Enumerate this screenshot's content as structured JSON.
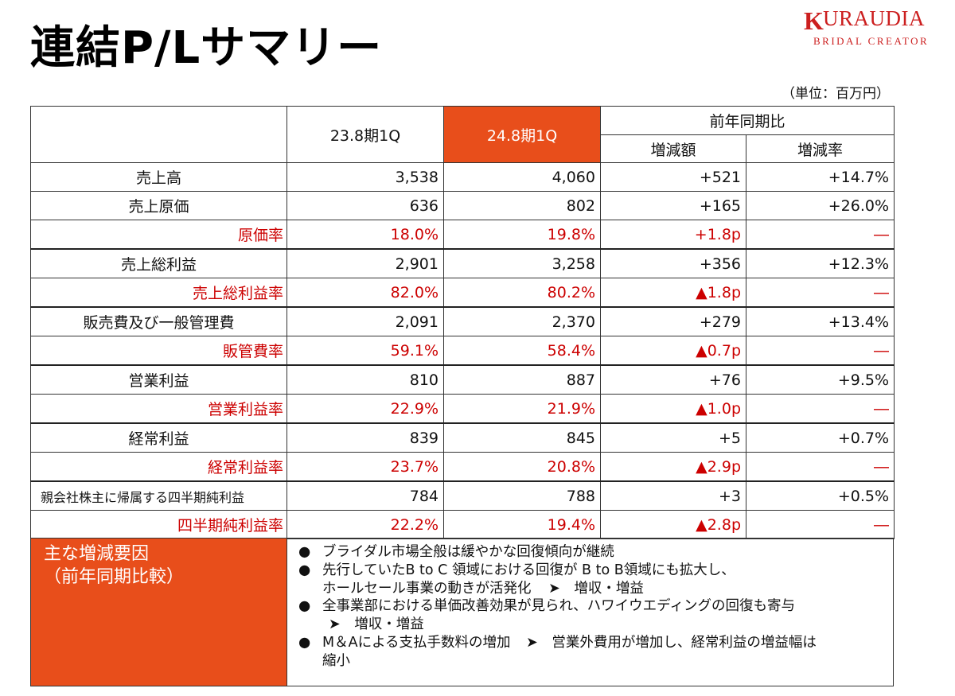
{
  "page": {
    "title": "連結P/Lサマリー",
    "unit_note": "（単位：百万円）"
  },
  "logo": {
    "k_letter": "K",
    "word": "URAUDIA",
    "subtitle": "BRIDAL CREATOR"
  },
  "table": {
    "headers": {
      "prev": "23.8期1Q",
      "curr": "24.8期1Q",
      "yoy": "前年同期比",
      "diff": "増減額",
      "rate": "増減率"
    },
    "rows": [
      {
        "label": "売上高",
        "prev": "3,538",
        "curr": "4,060",
        "diff": "+521",
        "rate": "+14.7%"
      },
      {
        "label": "売上原価",
        "prev": "636",
        "curr": "802",
        "diff": "+165",
        "rate": "+26.0%"
      },
      {
        "label": "原価率",
        "prev": "18.0%",
        "curr": "19.8%",
        "diff": "+1.8p",
        "rate": "―"
      },
      {
        "label": "売上総利益",
        "prev": "2,901",
        "curr": "3,258",
        "diff": "+356",
        "rate": "+12.3%"
      },
      {
        "label": "売上総利益率",
        "prev": "82.0%",
        "curr": "80.2%",
        "diff": "▲1.8p",
        "rate": "―"
      },
      {
        "label": "販売費及び一般管理費",
        "prev": "2,091",
        "curr": "2,370",
        "diff": "+279",
        "rate": "+13.4%"
      },
      {
        "label": "販管費率",
        "prev": "59.1%",
        "curr": "58.4%",
        "diff": "▲0.7p",
        "rate": "―"
      },
      {
        "label": "営業利益",
        "prev": "810",
        "curr": "887",
        "diff": "+76",
        "rate": "+9.5%"
      },
      {
        "label": "営業利益率",
        "prev": "22.9%",
        "curr": "21.9%",
        "diff": "▲1.0p",
        "rate": "―"
      },
      {
        "label": "経常利益",
        "prev": "839",
        "curr": "845",
        "diff": "+5",
        "rate": "+0.7%"
      },
      {
        "label": "経常利益率",
        "prev": "23.7%",
        "curr": "20.8%",
        "diff": "▲2.9p",
        "rate": "―"
      },
      {
        "label": "親会社株主に帰属する四半期純利益",
        "prev": "784",
        "curr": "788",
        "diff": "+3",
        "rate": "+0.5%"
      },
      {
        "label": "四半期純利益率",
        "prev": "22.2%",
        "curr": "19.4%",
        "diff": "▲2.8p",
        "rate": "―"
      }
    ]
  },
  "summary": {
    "head_line1": "主な増減要因",
    "head_line2": "（前年同期比較）",
    "bullet_glyph": "●",
    "arrow_glyph": "➤",
    "items": [
      {
        "text": "ブライダル市場全般は緩やかな回復傾向が継続"
      },
      {
        "text": "先行していたB to C 領域における回復が B to B領域にも拡大し、",
        "cont": "ホールセール事業の動きが活発化",
        "result": "増収・増益"
      },
      {
        "text": "全事業部における単価改善効果が見られ、ハワイウエディングの回復も寄与",
        "result": "増収・増益"
      },
      {
        "text": "M＆Aによる支払手数料の増加",
        "result": "営業外費用が増加し、経常利益の増益幅は",
        "cont": "縮小"
      }
    ]
  }
}
